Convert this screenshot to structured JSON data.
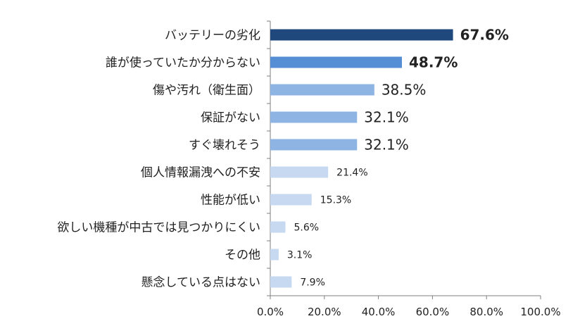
{
  "chart_data": {
    "type": "bar",
    "orientation": "horizontal",
    "categories": [
      "バッテリーの劣化",
      "誰が使っていたか分からない",
      "傷や汚れ（衛生面）",
      "保証がない",
      "すぐ壊れそう",
      "個人情報漏洩への不安",
      "性能が低い",
      "欲しい機種が中古では見つかりにくい",
      "その他",
      "懸念している点はない"
    ],
    "values": [
      67.6,
      48.7,
      38.5,
      32.1,
      32.1,
      21.4,
      15.3,
      5.6,
      3.1,
      7.9
    ],
    "value_labels": [
      "67.6%",
      "48.7%",
      "38.5%",
      "32.1%",
      "32.1%",
      "21.4%",
      "15.3%",
      "5.6%",
      "3.1%",
      "7.9%"
    ],
    "bar_colors": [
      "#1f497d",
      "#558ed5",
      "#8eb4e3",
      "#8eb4e3",
      "#8eb4e3",
      "#c6d9f1",
      "#c6d9f1",
      "#c6d9f1",
      "#c6d9f1",
      "#c6d9f1"
    ],
    "label_colors": [
      "#e00000",
      "#e00000",
      "#e00000",
      "#222222",
      "#222222",
      "#222222",
      "#222222",
      "#222222",
      "#222222",
      "#222222"
    ],
    "label_emphasis": [
      "bold",
      "bold",
      "normal",
      "normal",
      "normal",
      "small",
      "small",
      "small",
      "small",
      "small"
    ],
    "xlim": [
      0,
      100
    ],
    "xticks": [
      "0.0%",
      "20.0%",
      "40.0%",
      "60.0%",
      "80.0%",
      "100.0%"
    ],
    "grid": false,
    "title": "",
    "xlabel": "",
    "ylabel": ""
  }
}
